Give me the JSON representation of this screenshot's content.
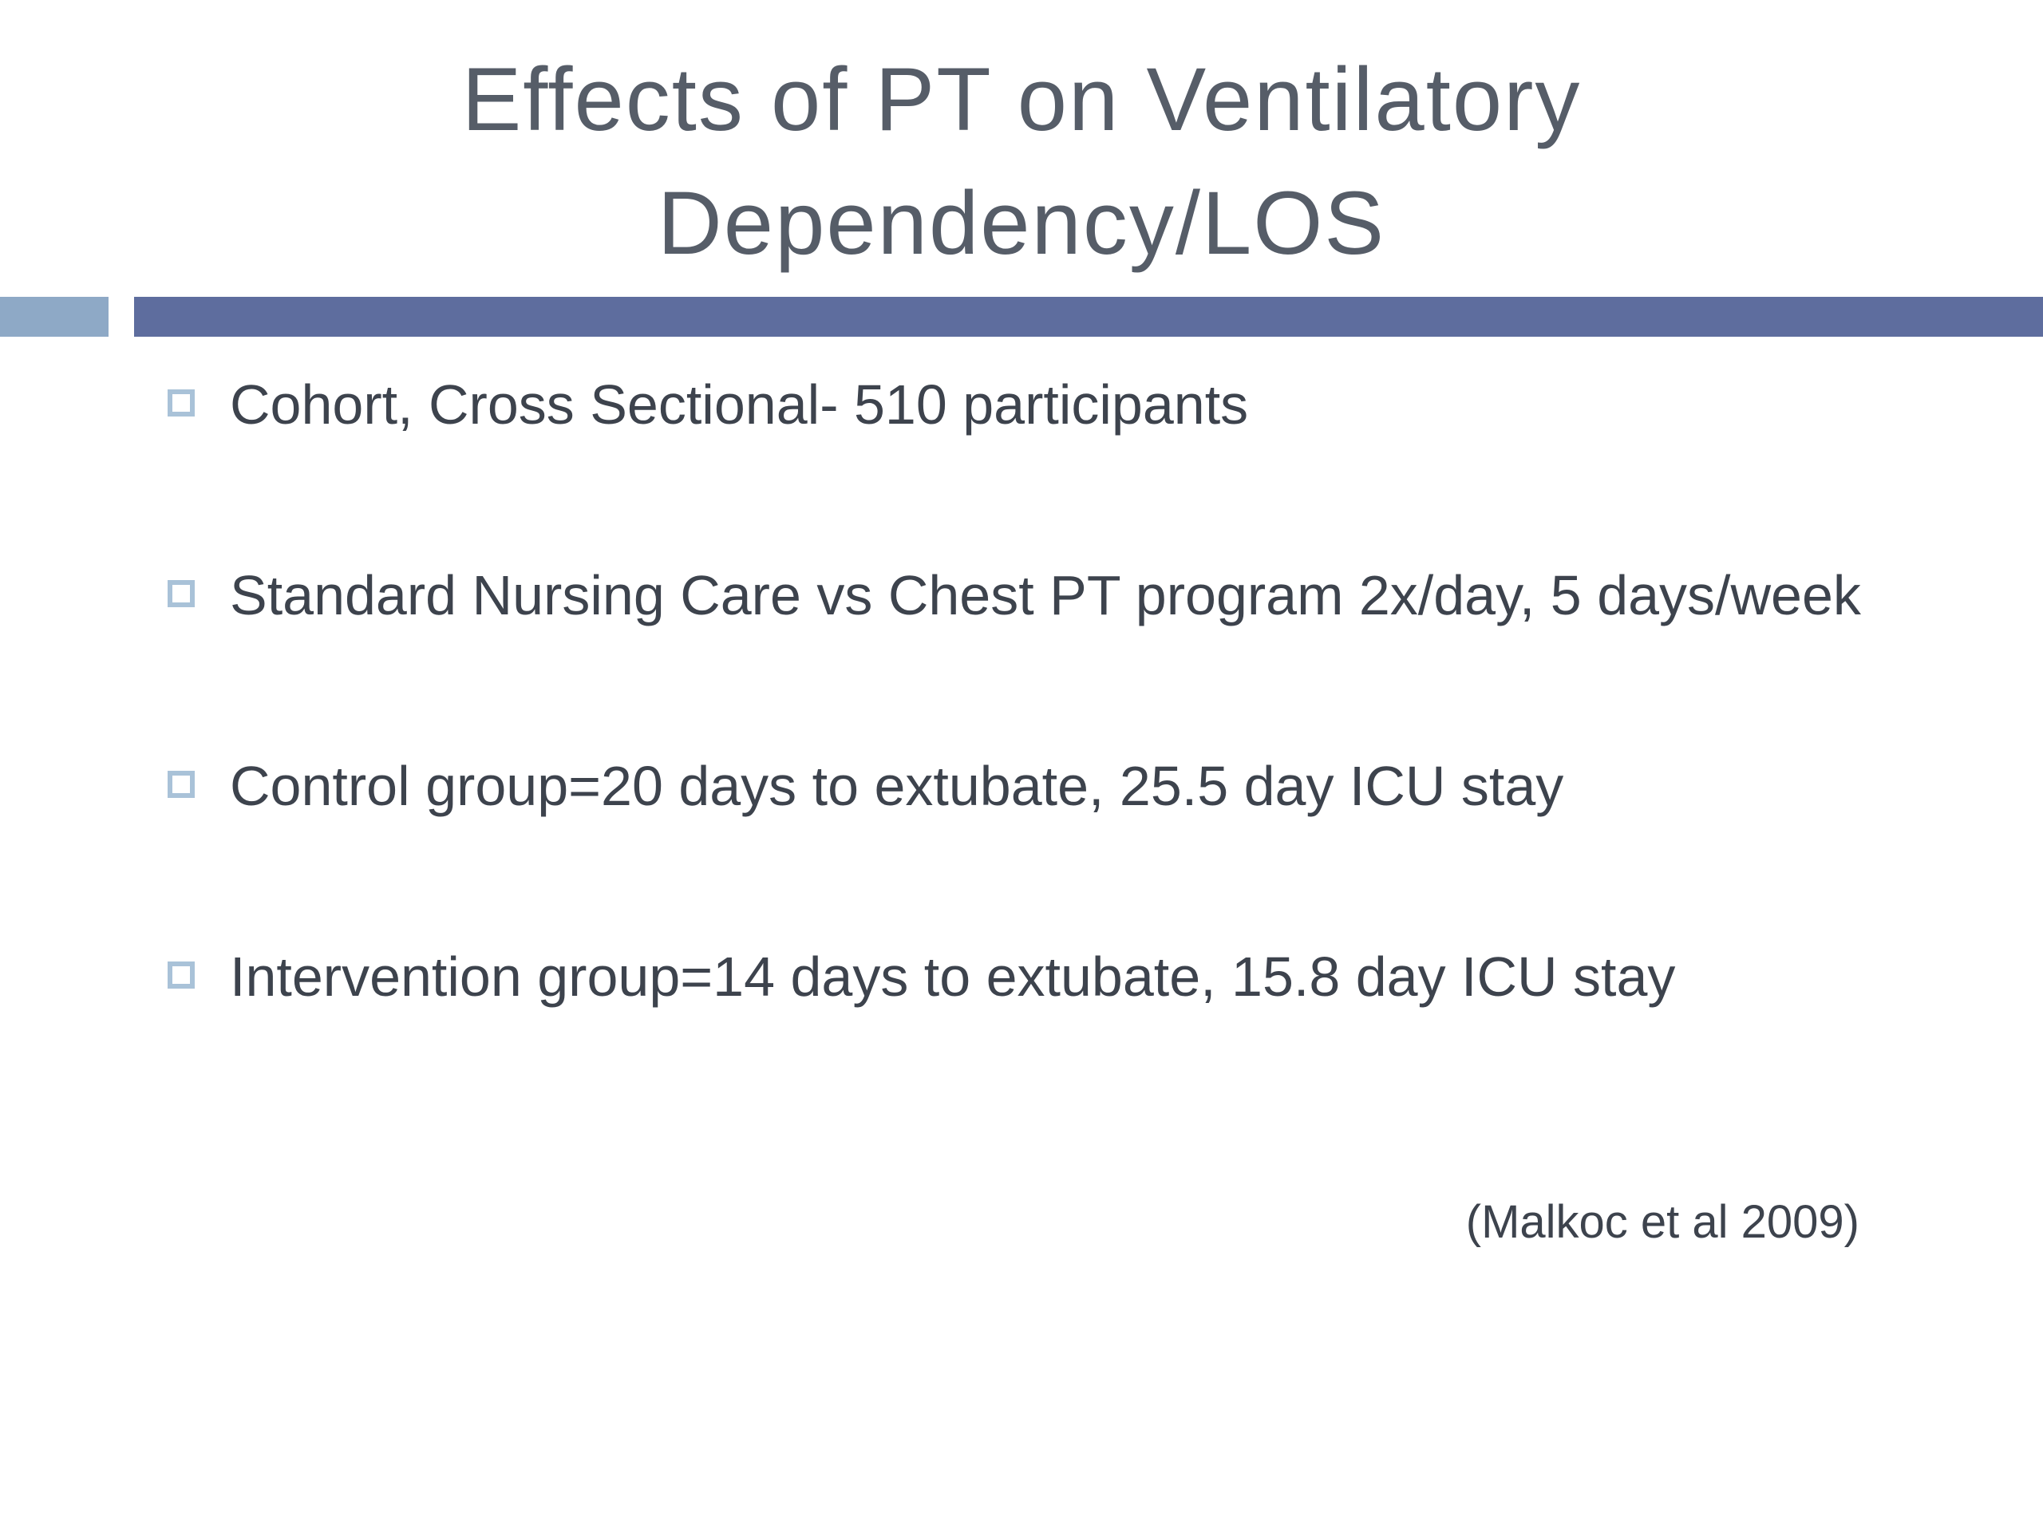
{
  "slide": {
    "title": {
      "line1": "Effects of PT on Ventilatory",
      "line2": "Dependency/LOS",
      "full": "Effects of PT on Ventilatory Dependency/LOS"
    },
    "bullets": [
      {
        "text": "Cohort, Cross Sectional- 510 participants"
      },
      {
        "text": "Standard Nursing Care vs Chest PT program 2x/day, 5 days/week"
      },
      {
        "text": "Control group=20 days to extubate, 25.5 day ICU stay"
      },
      {
        "text": "Intervention group=14 days to extubate, 15.8 day ICU stay"
      }
    ],
    "citation": "(Malkoc et al 2009)",
    "colors": {
      "title-color": "#565d68",
      "body-color": "#3d434d",
      "bar-color": "#5e6d9e",
      "bar-accent-color": "#8ea9c6",
      "marker-color": "#a9c2d8",
      "bg-color": "#ffffff"
    }
  }
}
